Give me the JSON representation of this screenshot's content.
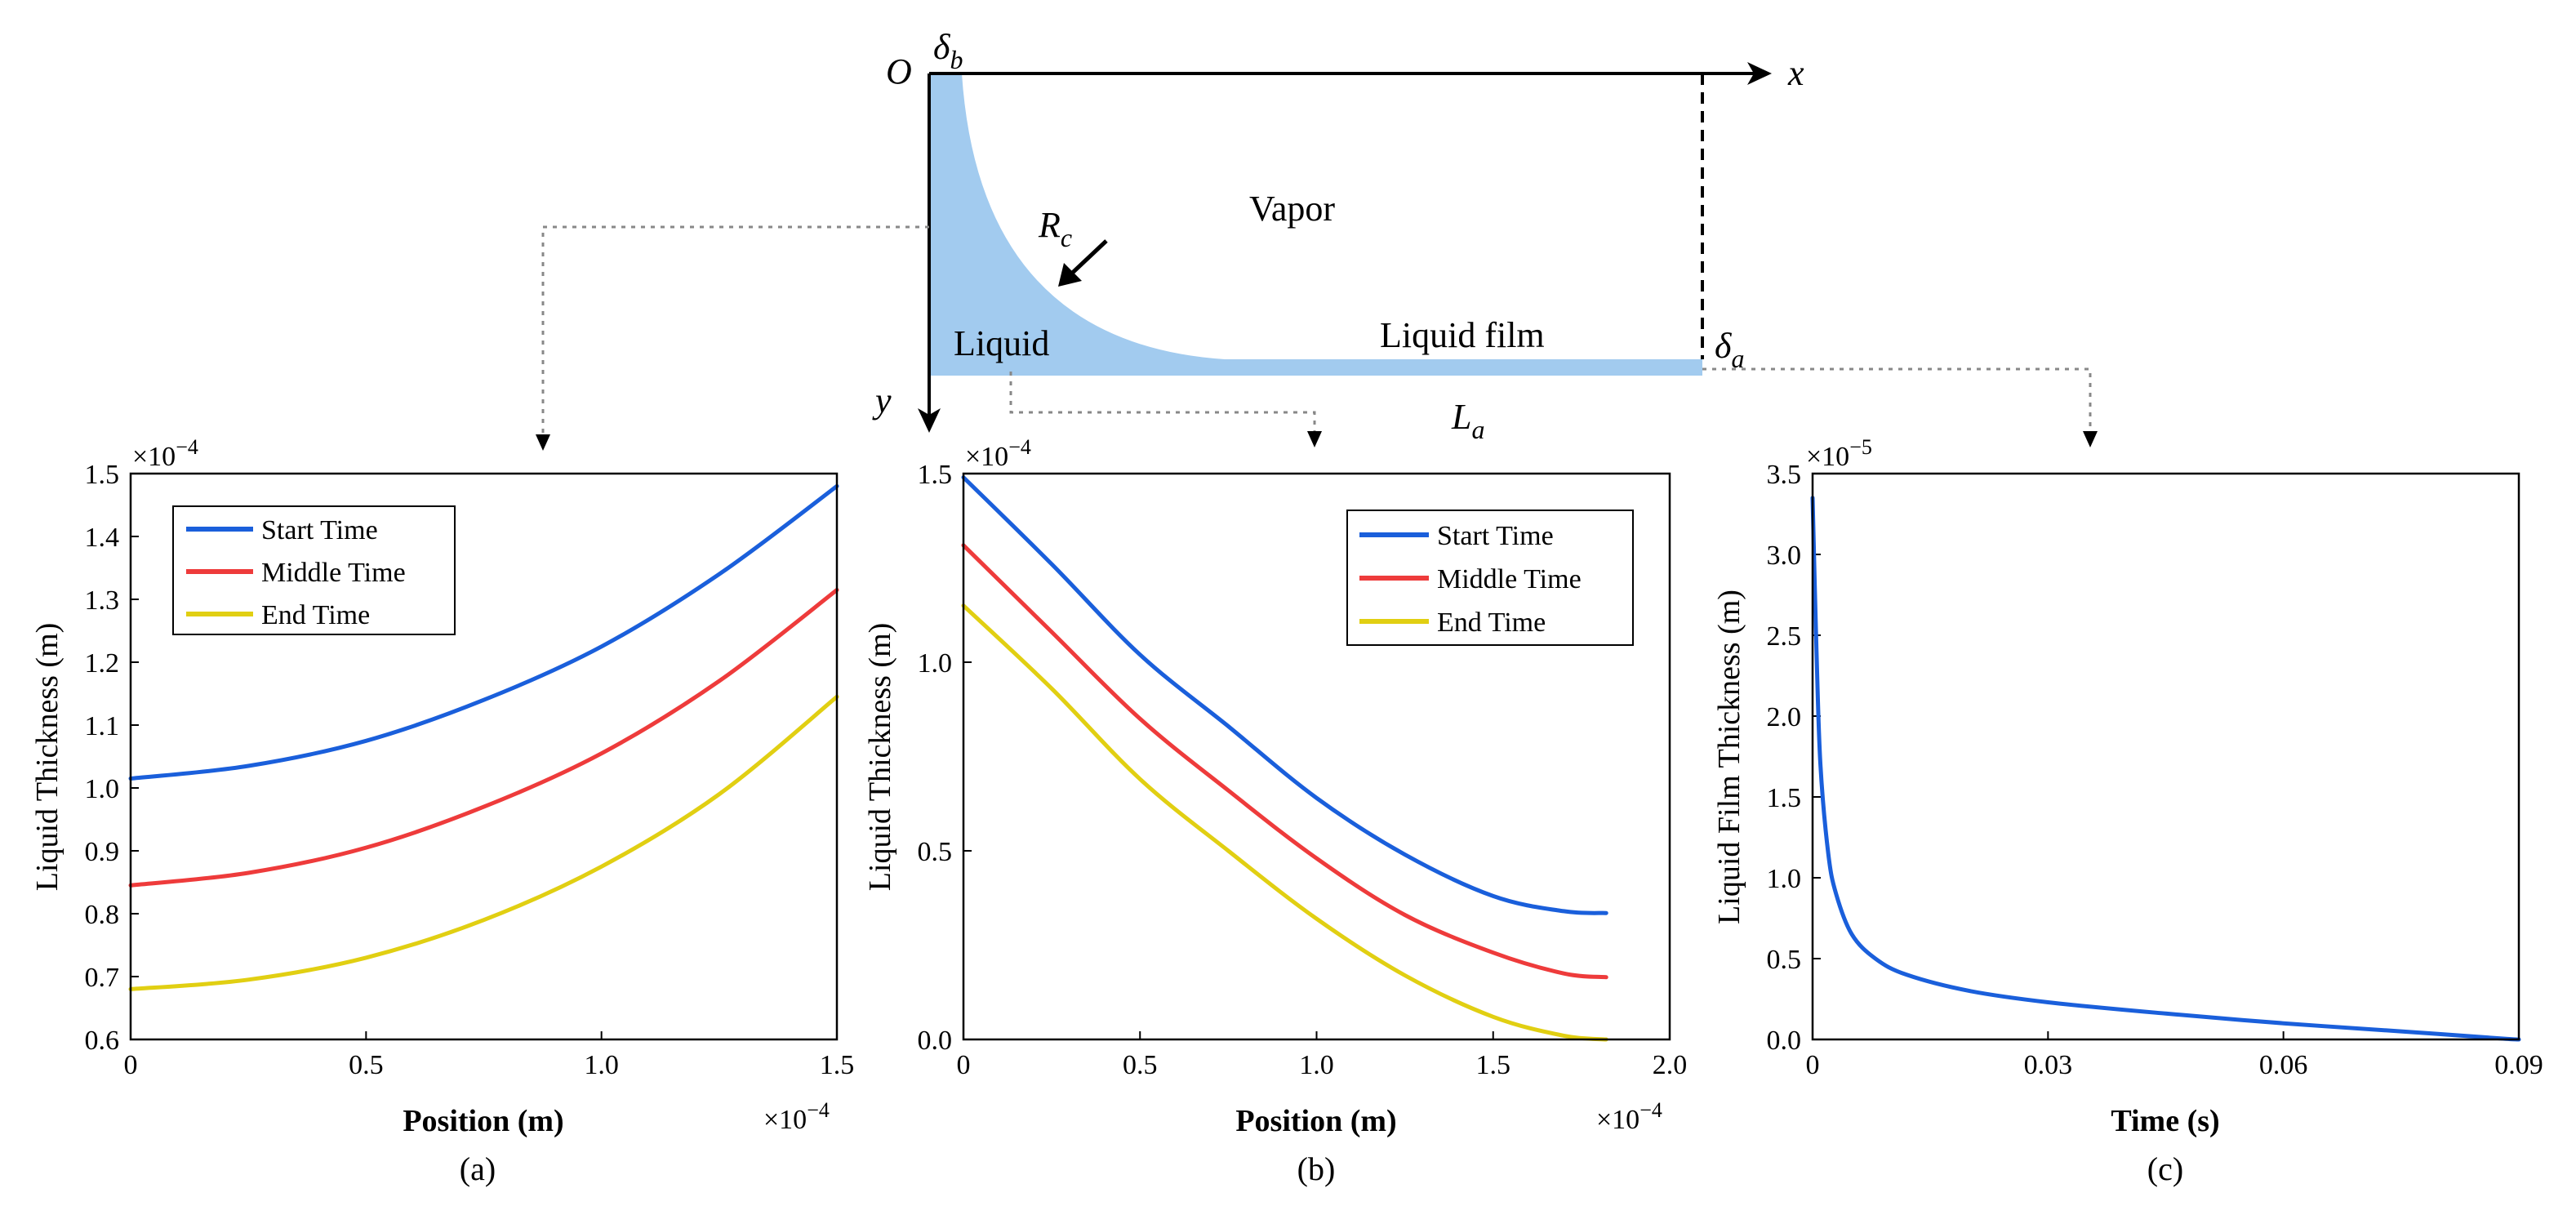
{
  "diagram": {
    "origin_label": "O",
    "x_axis_label": "x",
    "y_axis_label": "y",
    "delta_b": "δ",
    "delta_b_sub": "b",
    "delta_a": "δ",
    "delta_a_sub": "a",
    "radius": "R",
    "radius_sub": "c",
    "length": "L",
    "length_sub": "a",
    "vapor_label": "Vapor",
    "liquid_label": "Liquid",
    "film_label": "Liquid film",
    "liquid_color": "#a2cbef"
  },
  "chart_data": [
    {
      "id": "a",
      "type": "line",
      "panel_label": "(a)",
      "xlabel": "Position (m)",
      "ylabel": "Liquid Thickness (m)",
      "x_multiplier": "×10",
      "x_multiplier_exp": "−4",
      "y_multiplier": "×10",
      "y_multiplier_exp": "−4",
      "xlim": [
        0,
        1.5
      ],
      "ylim": [
        0.6,
        1.5
      ],
      "xticks": [
        0,
        0.5,
        1.0,
        1.5
      ],
      "xtick_labels": [
        "0",
        "0.5",
        "1.0",
        "1.5"
      ],
      "yticks": [
        0.6,
        0.7,
        0.8,
        0.9,
        1.0,
        1.1,
        1.2,
        1.3,
        1.4,
        1.5
      ],
      "ytick_labels": [
        "0.6",
        "0.7",
        "0.8",
        "0.9",
        "1.0",
        "1.1",
        "1.2",
        "1.3",
        "1.4",
        "1.5"
      ],
      "legend_position": "top-left",
      "x": [
        0,
        0.25,
        0.5,
        0.75,
        1.0,
        1.25,
        1.5
      ],
      "series": [
        {
          "name": "Start Time",
          "color": "#1a5fdb",
          "values": [
            1.015,
            1.035,
            1.075,
            1.14,
            1.225,
            1.34,
            1.48
          ]
        },
        {
          "name": "Middle Time",
          "color": "#ee3b3b",
          "values": [
            0.845,
            0.865,
            0.905,
            0.97,
            1.055,
            1.17,
            1.315
          ]
        },
        {
          "name": "End Time",
          "color": "#e1cf12",
          "values": [
            0.68,
            0.695,
            0.73,
            0.79,
            0.875,
            0.99,
            1.145
          ]
        }
      ]
    },
    {
      "id": "b",
      "type": "line",
      "panel_label": "(b)",
      "xlabel": "Position (m)",
      "ylabel": "Liquid Thickness (m)",
      "x_multiplier": "×10",
      "x_multiplier_exp": "−4",
      "y_multiplier": "×10",
      "y_multiplier_exp": "−4",
      "xlim": [
        0,
        2.0
      ],
      "ylim": [
        0,
        1.5
      ],
      "xticks": [
        0,
        0.5,
        1.0,
        1.5,
        2.0
      ],
      "xtick_labels": [
        "0",
        "0.5",
        "1.0",
        "1.5",
        "2.0"
      ],
      "yticks": [
        0,
        0.5,
        1.0,
        1.5
      ],
      "ytick_labels": [
        "0.0",
        "0.5",
        "1.0",
        "1.5"
      ],
      "legend_position": "top-right",
      "x": [
        0,
        0.25,
        0.5,
        0.75,
        1.0,
        1.25,
        1.5,
        1.7,
        1.82
      ],
      "series": [
        {
          "name": "Start Time",
          "color": "#1a5fdb",
          "values": [
            1.49,
            1.26,
            1.02,
            0.83,
            0.64,
            0.49,
            0.38,
            0.34,
            0.335
          ]
        },
        {
          "name": "Middle Time",
          "color": "#ee3b3b",
          "values": [
            1.31,
            1.08,
            0.85,
            0.66,
            0.48,
            0.33,
            0.23,
            0.175,
            0.165
          ]
        },
        {
          "name": "End Time",
          "color": "#e1cf12",
          "values": [
            1.15,
            0.93,
            0.69,
            0.5,
            0.32,
            0.17,
            0.06,
            0.01,
            0.0
          ]
        }
      ]
    },
    {
      "id": "c",
      "type": "line",
      "panel_label": "(c)",
      "xlabel": "Time (s)",
      "ylabel": "Liquid Film Thickness (m)",
      "y_multiplier": "×10",
      "y_multiplier_exp": "−5",
      "xlim": [
        0,
        0.09
      ],
      "ylim": [
        0,
        3.5
      ],
      "xticks": [
        0,
        0.03,
        0.06,
        0.09
      ],
      "xtick_labels": [
        "0",
        "0.03",
        "0.06",
        "0.09"
      ],
      "yticks": [
        0,
        0.5,
        1.0,
        1.5,
        2.0,
        2.5,
        3.0,
        3.5
      ],
      "ytick_labels": [
        "0.0",
        "0.5",
        "1.0",
        "1.5",
        "2.0",
        "2.5",
        "3.0",
        "3.5"
      ],
      "x": [
        0,
        0.0005,
        0.001,
        0.002,
        0.003,
        0.005,
        0.008,
        0.012,
        0.02,
        0.03,
        0.045,
        0.06,
        0.075,
        0.088,
        0.09
      ],
      "series": [
        {
          "name": "Liquid film thickness",
          "color": "#1a5fdb",
          "values": [
            3.35,
            2.4,
            1.7,
            1.15,
            0.9,
            0.65,
            0.5,
            0.4,
            0.3,
            0.23,
            0.16,
            0.1,
            0.05,
            0.005,
            0.0
          ]
        }
      ]
    }
  ]
}
